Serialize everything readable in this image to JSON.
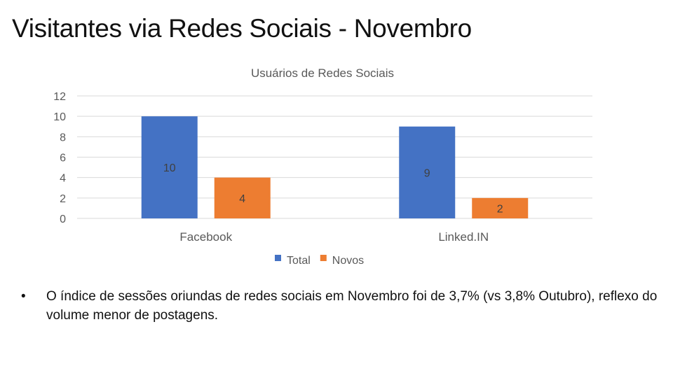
{
  "slide": {
    "title": "Visitantes via Redes Sociais - Novembro",
    "bullet": "O índice de sessões oriundas de redes sociais em Novembro foi de 3,7% (vs 3,8% Outubro), reflexo do volume menor de postagens."
  },
  "chart_data": {
    "type": "bar",
    "title": "Usuários de Redes Sociais",
    "categories": [
      "Facebook",
      "Linked.IN"
    ],
    "series": [
      {
        "name": "Total",
        "values": [
          10,
          9
        ],
        "color": "#4472C4"
      },
      {
        "name": "Novos",
        "values": [
          4,
          2
        ],
        "color": "#ED7D31"
      }
    ],
    "ylim": [
      0,
      12
    ],
    "yticks": [
      0,
      2,
      4,
      6,
      8,
      10,
      12
    ],
    "grid": true,
    "legend": "bottom",
    "data_labels": true
  }
}
